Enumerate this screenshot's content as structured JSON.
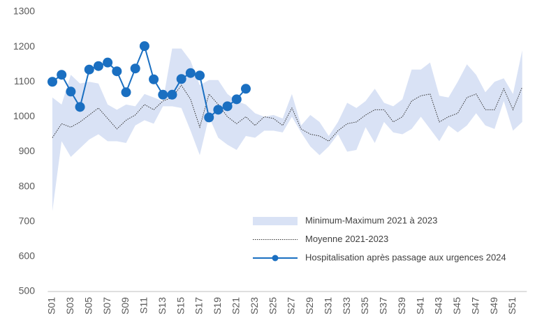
{
  "chart_data": {
    "type": "band-line",
    "categories": [
      "S01",
      null,
      "S03",
      null,
      "S05",
      null,
      "S07",
      null,
      "S09",
      null,
      "S11",
      null,
      "S13",
      null,
      "S15",
      null,
      "S17",
      null,
      "S19",
      null,
      "S21",
      null,
      "S23",
      null,
      "S25",
      null,
      "S27",
      null,
      "S29",
      null,
      "S31",
      null,
      "S33",
      null,
      "S35",
      null,
      "S37",
      null,
      "S39",
      null,
      "S41",
      null,
      "S43",
      null,
      "S45",
      null,
      "S47",
      null,
      "S49",
      null,
      "S51",
      null
    ],
    "ylim": [
      500,
      1300
    ],
    "yticks": [
      500,
      600,
      700,
      800,
      900,
      1000,
      1100,
      1200,
      1300
    ],
    "grid": false,
    "legend": "bottom-right",
    "series": [
      {
        "name": "Minimum-Maximum 2021 à 2023",
        "kind": "band",
        "color": "#d9e2f5",
        "min": [
          730,
          930,
          885,
          910,
          935,
          950,
          930,
          930,
          925,
          975,
          990,
          980,
          1030,
          1030,
          1025,
          960,
          890,
          1000,
          940,
          920,
          905,
          945,
          940,
          960,
          960,
          955,
          1000,
          955,
          915,
          890,
          915,
          950,
          900,
          905,
          970,
          925,
          985,
          955,
          950,
          965,
          1000,
          965,
          930,
          975,
          955,
          975,
          1010,
          975,
          965,
          1045,
          960,
          985
        ],
        "max": [
          1055,
          1035,
          1120,
          1095,
          1100,
          1095,
          1035,
          1020,
          1035,
          1030,
          1065,
          1055,
          1045,
          1195,
          1195,
          1160,
          1090,
          1105,
          1105,
          1065,
          1045,
          1035,
          1010,
          1000,
          1005,
          995,
          1065,
          975,
          1005,
          985,
          945,
          985,
          1040,
          1025,
          1045,
          1080,
          1040,
          1030,
          1050,
          1135,
          1135,
          1155,
          1060,
          1055,
          1100,
          1150,
          1120,
          1070,
          1100,
          1110,
          1065,
          1190
        ]
      },
      {
        "name": "Moyenne 2021-2023",
        "kind": "dotted",
        "color": "#333333",
        "values": [
          940,
          980,
          970,
          985,
          1005,
          1025,
          995,
          965,
          990,
          1005,
          1035,
          1020,
          1045,
          1055,
          1090,
          1050,
          970,
          1065,
          1035,
          1000,
          980,
          1000,
          975,
          1000,
          995,
          975,
          1025,
          965,
          950,
          945,
          930,
          960,
          980,
          985,
          1005,
          1020,
          1020,
          985,
          1000,
          1045,
          1060,
          1065,
          985,
          1000,
          1010,
          1055,
          1065,
          1020,
          1020,
          1080,
          1020,
          1085
        ]
      },
      {
        "name": "Hospitalisation après passage aux urgences 2024",
        "kind": "line-marker",
        "color": "#1a6fc1",
        "values": [
          1100,
          1120,
          1072,
          1028,
          1135,
          1145,
          1155,
          1130,
          1070,
          1138,
          1202,
          1107,
          1063,
          1063,
          1108,
          1125,
          1118,
          998,
          1020,
          1030,
          1050,
          1080,
          null,
          null,
          null,
          null,
          null,
          null,
          null,
          null,
          null,
          null,
          null,
          null,
          null,
          null,
          null,
          null,
          null,
          null,
          null,
          null,
          null,
          null,
          null,
          null,
          null,
          null,
          null,
          null,
          null,
          null
        ]
      }
    ]
  }
}
